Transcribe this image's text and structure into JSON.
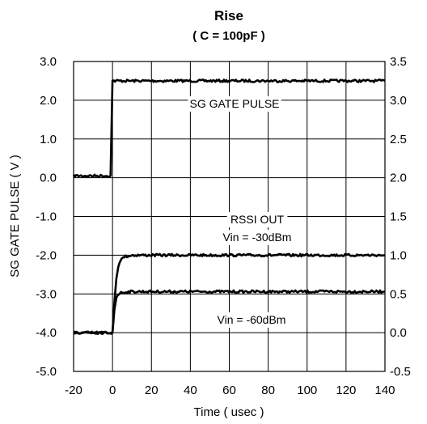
{
  "chart_data": {
    "type": "line",
    "title": "Rise",
    "subtitle": "( C = 100pF )",
    "xlabel": "Time ( usec )",
    "ylabel": "SG GATE PULSE ( V )",
    "xlim": [
      -20,
      140
    ],
    "ylim": [
      -5.0,
      3.0
    ],
    "y2lim": [
      -0.5,
      3.5
    ],
    "x_ticks": [
      "-20",
      "0",
      "20",
      "40",
      "60",
      "80",
      "100",
      "120",
      "140"
    ],
    "y_ticks": [
      "3.0",
      "2.0",
      "1.0",
      "0.0",
      "-1.0",
      "-2.0",
      "-3.0",
      "-4.0",
      "-5.0"
    ],
    "y2_ticks": [
      "3.5",
      "3.0",
      "2.5",
      "2.0",
      "1.5",
      "1.0",
      "0.5",
      "0.0",
      "-0.5"
    ],
    "grid": true,
    "annotations": [
      "SG GATE PULSE",
      "RSSI OUT",
      "Vin = -30dBm",
      "Vin = -60dBm"
    ],
    "series": [
      {
        "axis": "left",
        "x": [
          -20,
          -1,
          0,
          140
        ],
        "y": [
          0.05,
          0.05,
          2.5,
          2.5
        ]
      },
      {
        "axis": "right",
        "x": [
          -20,
          0,
          1,
          2,
          3,
          4,
          6,
          10,
          140
        ],
        "y": [
          0.0,
          0.0,
          0.4,
          0.7,
          0.85,
          0.93,
          0.98,
          1.0,
          1.0
        ]
      },
      {
        "axis": "right",
        "x": [
          -20,
          0,
          1,
          2,
          3,
          5,
          10,
          140
        ],
        "y": [
          0.0,
          0.0,
          0.3,
          0.45,
          0.5,
          0.52,
          0.53,
          0.53
        ]
      }
    ]
  }
}
